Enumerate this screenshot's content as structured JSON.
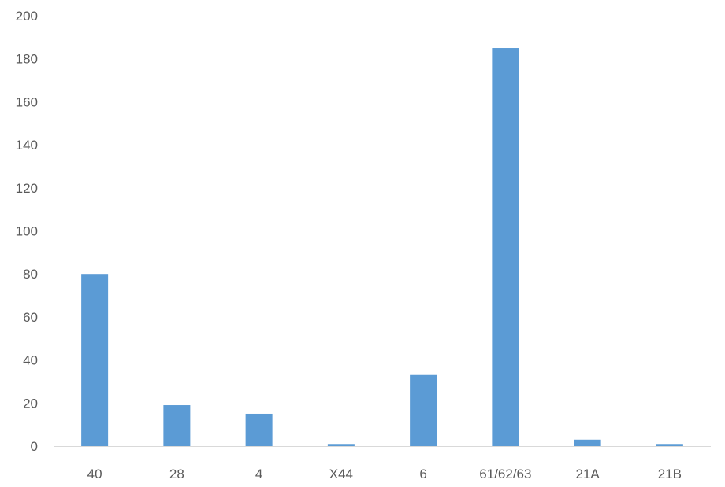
{
  "chart_data": {
    "type": "bar",
    "categories": [
      "40",
      "28",
      "4",
      "X44",
      "6",
      "61/62/63",
      "21A",
      "21B"
    ],
    "values": [
      80,
      19,
      15,
      1,
      33,
      185,
      3,
      1
    ],
    "ylim": [
      0,
      200
    ],
    "yticks": [
      0,
      20,
      40,
      60,
      80,
      100,
      120,
      140,
      160,
      180,
      200
    ],
    "grid": false,
    "bar_color": "#5b9bd5",
    "axis_color": "#d9d9d9",
    "label_color": "#595959"
  }
}
